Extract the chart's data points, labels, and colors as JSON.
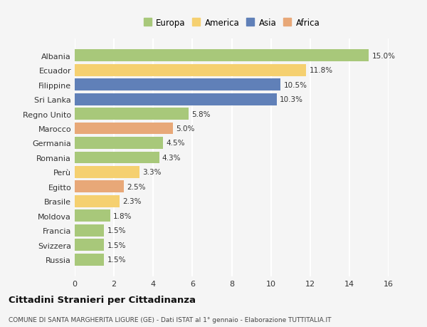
{
  "categories": [
    "Albania",
    "Ecuador",
    "Filippine",
    "Sri Lanka",
    "Regno Unito",
    "Marocco",
    "Germania",
    "Romania",
    "Perù",
    "Egitto",
    "Brasile",
    "Moldova",
    "Francia",
    "Svizzera",
    "Russia"
  ],
  "values": [
    15.0,
    11.8,
    10.5,
    10.3,
    5.8,
    5.0,
    4.5,
    4.3,
    3.3,
    2.5,
    2.3,
    1.8,
    1.5,
    1.5,
    1.5
  ],
  "continents": [
    "Europa",
    "America",
    "Asia",
    "Asia",
    "Europa",
    "Africa",
    "Europa",
    "Europa",
    "America",
    "Africa",
    "America",
    "Europa",
    "Europa",
    "Europa",
    "Europa"
  ],
  "colors": {
    "Europa": "#a8c87a",
    "America": "#f5d070",
    "Asia": "#6080b8",
    "Africa": "#e8a878"
  },
  "legend_order": [
    "Europa",
    "America",
    "Asia",
    "Africa"
  ],
  "xlim": [
    0,
    16
  ],
  "xticks": [
    0,
    2,
    4,
    6,
    8,
    10,
    12,
    14,
    16
  ],
  "title": "Cittadini Stranieri per Cittadinanza",
  "subtitle": "COMUNE DI SANTA MARGHERITA LIGURE (GE) - Dati ISTAT al 1° gennaio - Elaborazione TUTTITALIA.IT",
  "background_color": "#f5f5f5",
  "grid_color": "#ffffff",
  "bar_height": 0.82
}
